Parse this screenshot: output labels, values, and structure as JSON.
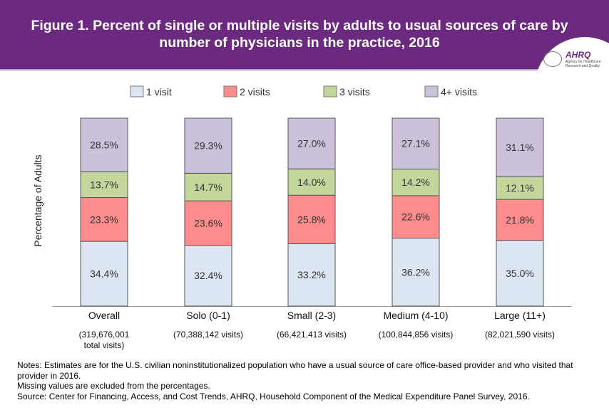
{
  "header": {
    "title": "Figure 1. Percent of single or multiple visits by adults to usual sources of care by number of physicians in the practice, 2016",
    "logo_text": "AHRQ",
    "logo_subtext": "Agency for Healthcare Research and Quality"
  },
  "chart_data": {
    "type": "bar",
    "stacked": true,
    "title": "Figure 1. Percent of single or multiple visits by adults to usual sources of care by number of physicians in the practice, 2016",
    "ylabel": "Percentage of Adults",
    "ylim": [
      0,
      100
    ],
    "legend_position": "top",
    "grid": false,
    "categories": [
      "Overall",
      "Solo (0-1)",
      "Small (2-3)",
      "Medium (4-10)",
      "Large (11+)"
    ],
    "category_sublabels": [
      "(319,676,001 total visits)",
      "(70,388,142 visits)",
      "(66,421,413 visits)",
      "(100,844,856 visits)",
      "(82,021,590 visits)"
    ],
    "series": [
      {
        "name": "1 visit",
        "color": "#dce6f2",
        "values": [
          34.4,
          32.4,
          33.2,
          36.2,
          35.0
        ]
      },
      {
        "name": "2 visits",
        "color": "#ff8c8c",
        "values": [
          23.3,
          23.6,
          25.8,
          22.6,
          21.8
        ]
      },
      {
        "name": "3 visits",
        "color": "#c3d69b",
        "values": [
          13.7,
          14.7,
          14.0,
          14.2,
          12.1
        ]
      },
      {
        "name": "4+ visits",
        "color": "#ccc1da",
        "values": [
          28.5,
          29.3,
          27.0,
          27.1,
          31.1
        ]
      }
    ]
  },
  "notes": [
    "Notes: Estimates are for the U.S. civilian noninstitutionalized population who have a usual source of care office-based provider and who visited that provider in 2016.",
    "Missing values are excluded from the percentages.",
    "Source: Center for Financing, Access, and Cost Trends, AHRQ, Household Component of the Medical Expenditure Panel Survey, 2016."
  ]
}
